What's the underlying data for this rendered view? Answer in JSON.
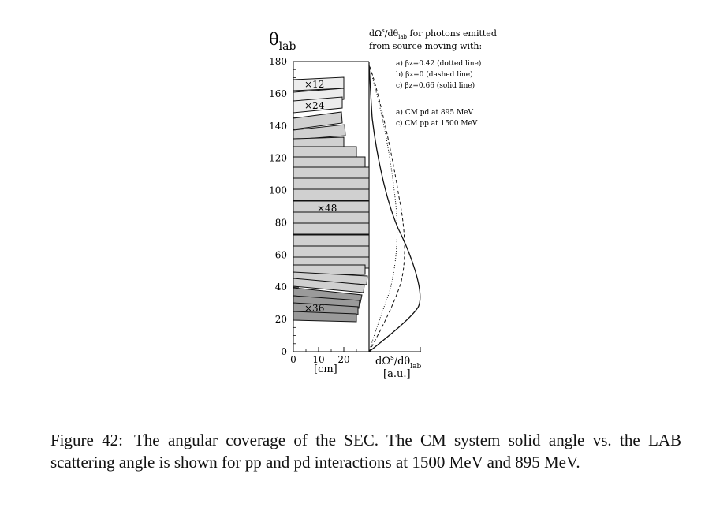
{
  "figure": {
    "y_axis_title": "θlab",
    "y_ticks": [
      "180",
      "160",
      "140",
      "120",
      "100",
      "80",
      "60",
      "40",
      "20",
      "0"
    ],
    "x_ticks": [
      "0",
      "10",
      "20"
    ],
    "x_unit": "[cm]",
    "right_axis_label": "dΩs/dθlab",
    "right_axis_unit": "[a.u.]",
    "legend_heading": [
      "dΩs/dθlab for photons emitted",
      "from source moving with:"
    ],
    "legend_betas": [
      "a) βz=0.42 (dotted line)",
      "b) βz=0 (dashed line)",
      "c) βz=0.66 (solid line)"
    ],
    "legend_systems": [
      "a) CM pd at 895 MeV",
      "c) CM pp at 1500 MeV"
    ],
    "multiplicity_labels": [
      "×12",
      "×24",
      "×48",
      "×36"
    ],
    "shade_colors": {
      "light": "#ececec",
      "mid": "#d0d0d0",
      "dark": "#9a9a9a",
      "stroke": "#111111"
    }
  },
  "caption": {
    "label": "Figure 42:",
    "text": "The angular coverage of the SEC. The CM system solid angle vs. the LAB scattering angle is shown for pp and pd interactions at 1500 MeV and 895 MeV."
  }
}
